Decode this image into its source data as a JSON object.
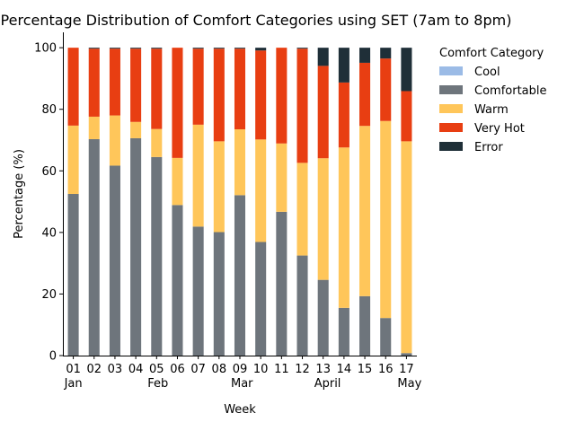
{
  "chart_data": {
    "type": "bar",
    "stacked": true,
    "title": "Percentage Distribution of Comfort Categories using SET (7am to 8pm)",
    "xlabel": "Week",
    "ylabel": "Percentage (%)",
    "ylim": [
      0,
      105
    ],
    "yticks": [
      0,
      20,
      40,
      60,
      80,
      100
    ],
    "grid": false,
    "legend_position": "right",
    "legend_title": "Comfort Category",
    "categories": [
      "01",
      "02",
      "03",
      "04",
      "05",
      "06",
      "07",
      "08",
      "09",
      "10",
      "11",
      "12",
      "13",
      "14",
      "15",
      "16",
      "17"
    ],
    "month_labels": [
      {
        "label": "Jan",
        "at": "01"
      },
      {
        "label": "Feb",
        "at": "05"
      },
      {
        "label": "Mar",
        "at": "09"
      },
      {
        "label": "April",
        "at": "13"
      },
      {
        "label": "May",
        "at": "17"
      }
    ],
    "series": [
      {
        "name": "Cool",
        "color": "#9bbbe6",
        "values": [
          0,
          0,
          0,
          0,
          0,
          0,
          0,
          0,
          0,
          0,
          0,
          0,
          0,
          0,
          0,
          0,
          0
        ]
      },
      {
        "name": "Comfortable",
        "color": "#6e757c",
        "values": [
          52.5,
          70.3,
          61.7,
          70.6,
          64.5,
          48.9,
          41.9,
          40.1,
          52.1,
          36.9,
          46.7,
          32.5,
          24.6,
          15.5,
          19.3,
          12.2,
          0.8
        ]
      },
      {
        "name": "Warm",
        "color": "#ffc65a",
        "values": [
          22.2,
          7.3,
          16.3,
          5.3,
          9.1,
          15.3,
          33.1,
          29.5,
          21.4,
          33.3,
          22.2,
          30.1,
          39.5,
          52.1,
          55.3,
          64.0,
          68.8
        ]
      },
      {
        "name": "Very Hot",
        "color": "#e83e12",
        "values": [
          25.3,
          22.1,
          21.7,
          23.8,
          26.1,
          35.8,
          24.7,
          30.1,
          26.2,
          28.9,
          31.1,
          37.1,
          30.0,
          21.1,
          20.5,
          20.3,
          16.3
        ]
      },
      {
        "name": "Error",
        "color": "#1f2f38",
        "values": [
          0,
          0.3,
          0.3,
          0.3,
          0.3,
          0,
          0.3,
          0.3,
          0.3,
          0.9,
          0,
          0.3,
          5.9,
          11.3,
          4.9,
          3.5,
          14.1
        ]
      }
    ]
  }
}
